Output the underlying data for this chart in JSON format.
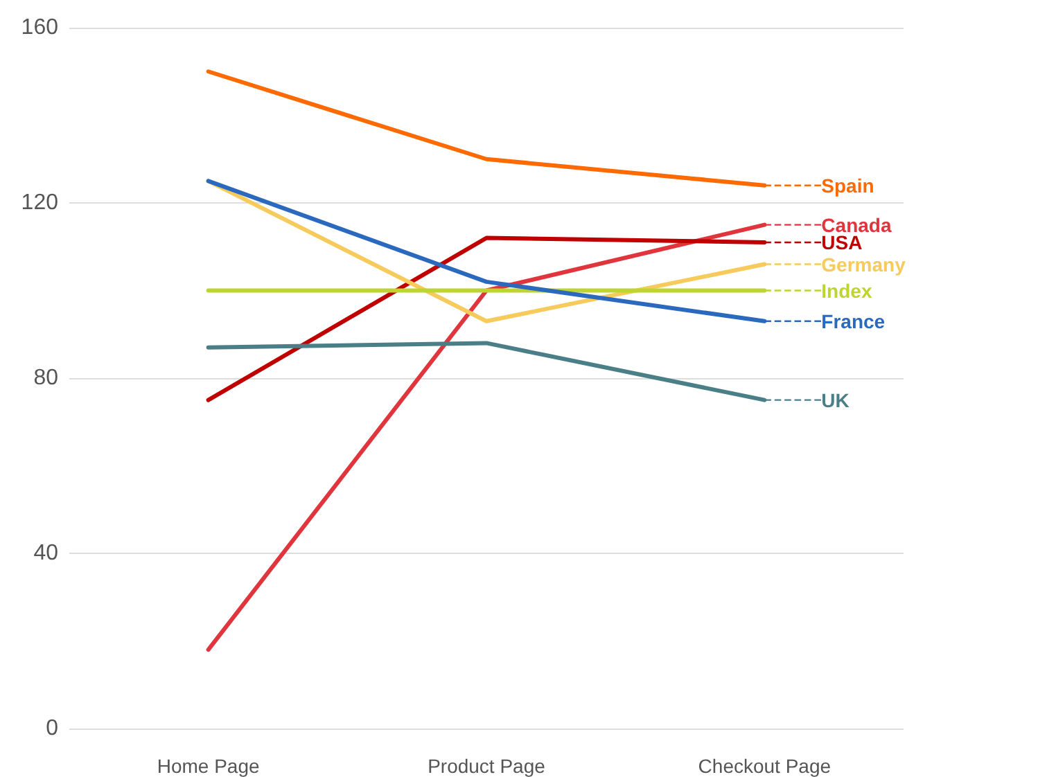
{
  "chart_data": {
    "type": "line",
    "categories": [
      "Home Page",
      "Product Page",
      "Checkout Page"
    ],
    "series": [
      {
        "name": "Spain",
        "color": "#fd6a02",
        "values": [
          150,
          130,
          124
        ]
      },
      {
        "name": "Canada",
        "color": "#e0353d",
        "values": [
          18,
          100,
          115
        ]
      },
      {
        "name": "USA",
        "color": "#c00000",
        "values": [
          75,
          112,
          111
        ]
      },
      {
        "name": "Germany",
        "color": "#f6ca5b",
        "values": [
          125,
          93,
          106
        ]
      },
      {
        "name": "Index",
        "color": "#bed430",
        "values": [
          100,
          100,
          100
        ]
      },
      {
        "name": "France",
        "color": "#2a69bd",
        "values": [
          125,
          102,
          93
        ]
      },
      {
        "name": "UK",
        "color": "#4b7f88",
        "values": [
          87,
          88,
          75
        ]
      }
    ],
    "ylim": [
      0,
      160
    ],
    "yticks": [
      0,
      40,
      80,
      120,
      160
    ],
    "grid": "y",
    "legend": "right",
    "marker": "none",
    "line_style": "solid"
  }
}
